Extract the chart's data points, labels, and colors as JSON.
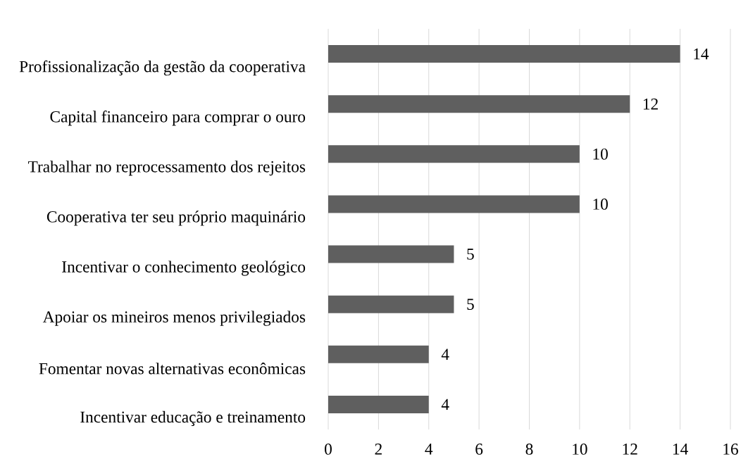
{
  "chart_data": {
    "type": "bar",
    "orientation": "horizontal",
    "categories": [
      "Profissionalização da gestão da cooperativa",
      "Capital financeiro para comprar o ouro",
      "Trabalhar no reprocessamento dos rejeitos",
      "Cooperativa ter seu próprio maquinário",
      "Incentivar o conhecimento geológico",
      "Apoiar os mineiros menos privilegiados",
      "Fomentar novas alternativas econômicas",
      "Incentivar educação e treinamento"
    ],
    "values": [
      14,
      12,
      10,
      10,
      5,
      5,
      4,
      4
    ],
    "color": "#5f5f5f",
    "xlim": [
      0,
      16
    ],
    "xticks": [
      0,
      2,
      4,
      6,
      8,
      10,
      12,
      14,
      16
    ],
    "grid": "x",
    "data_labels": true
  }
}
